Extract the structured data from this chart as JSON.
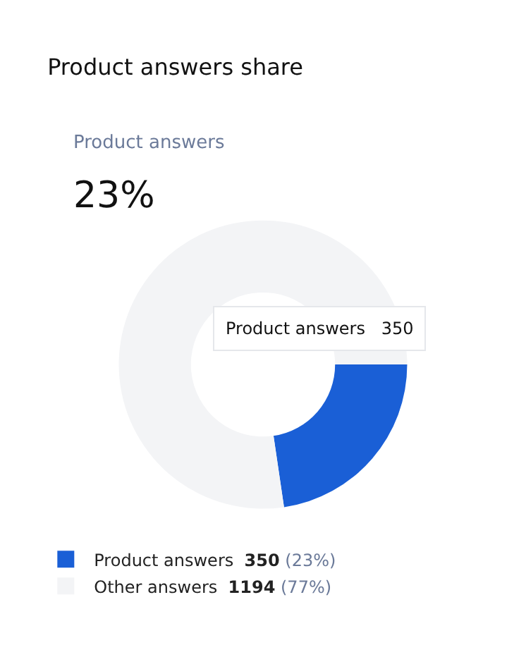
{
  "chart_data": {
    "type": "donut",
    "title": "Product answers share",
    "subtitle": "Product answers",
    "annotations": [
      "23%",
      "Product answers   350"
    ],
    "categories": [
      "Product answers",
      "Other answers"
    ],
    "values": [
      350,
      1194
    ],
    "value_labels": [
      "350 (23%)",
      "1194 (77%)"
    ],
    "colors": [
      "#1a5fd6",
      "#f3f4f6"
    ],
    "legend": "bottom"
  }
}
